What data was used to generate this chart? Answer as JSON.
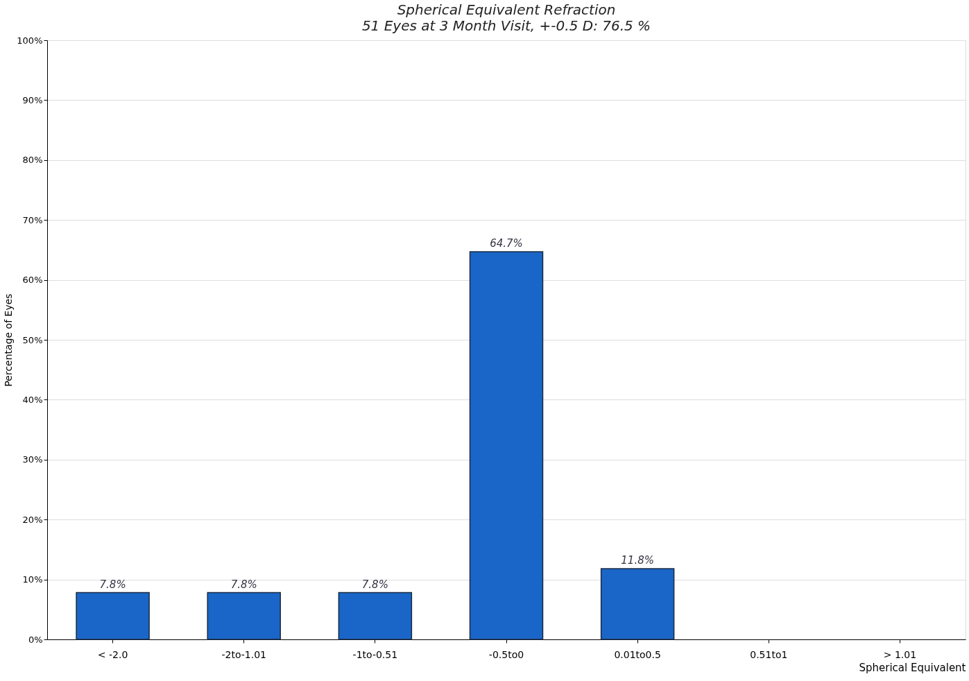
{
  "chart_data": {
    "type": "bar",
    "title": "Spherical Equivalent Refraction",
    "subtitle": "51 Eyes at 3 Month Visit, +-0.5 D: 76.5 %",
    "xlabel": "Spherical Equivalent",
    "ylabel": "Percentage of Eyes",
    "categories": [
      "< -2.0",
      "-2to-1.01",
      "-1to-0.51",
      "-0.5to0",
      "0.01to0.5",
      "0.51to1",
      "> 1.01"
    ],
    "values": [
      7.8,
      7.8,
      7.8,
      64.7,
      11.8,
      0,
      0
    ],
    "value_labels": [
      "7.8%",
      "7.8%",
      "7.8%",
      "64.7%",
      "11.8%",
      null,
      null
    ],
    "color": "#1a66c8",
    "ylim": [
      0,
      100
    ],
    "yticks": [
      {
        "value": 0,
        "label": "0%"
      },
      {
        "value": 10,
        "label": "10%"
      },
      {
        "value": 20,
        "label": "20%"
      },
      {
        "value": 30,
        "label": "30%"
      },
      {
        "value": 40,
        "label": "40%"
      },
      {
        "value": 50,
        "label": "50%"
      },
      {
        "value": 60,
        "label": "60%"
      },
      {
        "value": 70,
        "label": "70%"
      },
      {
        "value": 80,
        "label": "80%"
      },
      {
        "value": 90,
        "label": "90%"
      },
      {
        "value": 100,
        "label": "100%"
      }
    ],
    "grid": "y"
  }
}
